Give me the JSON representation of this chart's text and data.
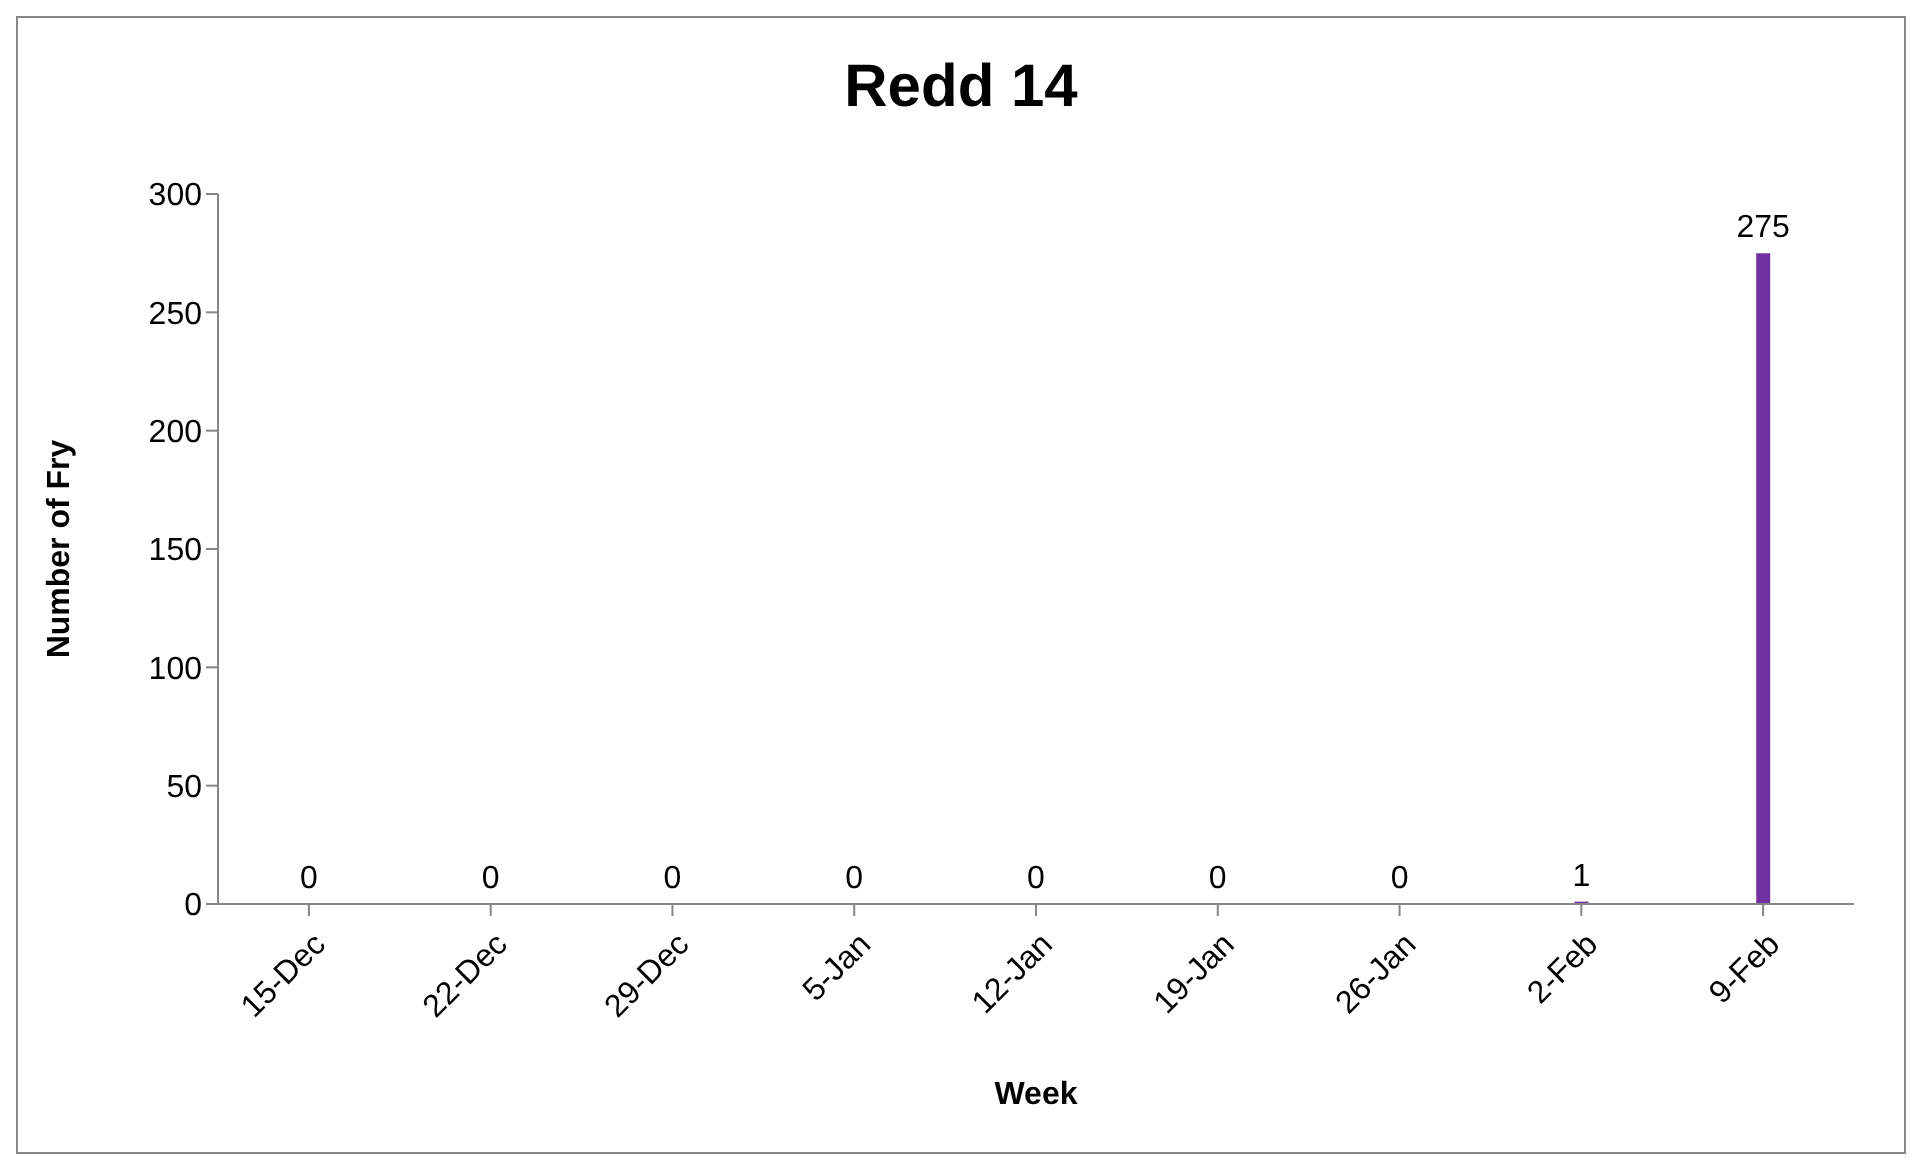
{
  "chart_data": {
    "type": "bar",
    "title": "Redd 14",
    "xlabel": "Week",
    "ylabel": "Number of  Fry",
    "categories": [
      "15-Dec",
      "22-Dec",
      "29-Dec",
      "5-Jan",
      "12-Jan",
      "19-Jan",
      "26-Jan",
      "2-Feb",
      "9-Feb"
    ],
    "values": [
      0,
      0,
      0,
      0,
      0,
      0,
      0,
      1,
      275
    ],
    "color": "#7030a0",
    "ylim": [
      0,
      300
    ],
    "yticks": [
      0,
      50,
      100,
      150,
      200,
      250,
      300
    ],
    "grid": false,
    "data_labels": true
  }
}
